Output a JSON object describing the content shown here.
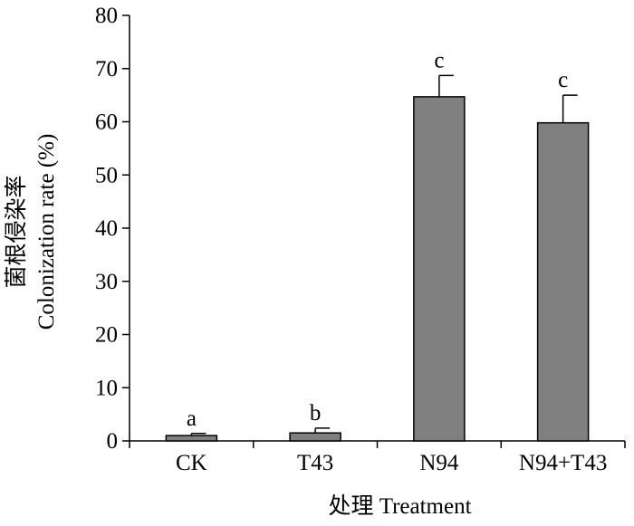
{
  "chart_data": {
    "type": "bar",
    "categories": [
      "CK",
      "T43",
      "N94",
      "N94+T43"
    ],
    "values": [
      1.0,
      1.5,
      64.7,
      59.8
    ],
    "errors": [
      0.4,
      0.9,
      4.0,
      5.2
    ],
    "significance": [
      "a",
      "b",
      "c",
      "c"
    ],
    "xlabel": "处理 Treatment",
    "ylabel_cn": "菌根侵染率",
    "ylabel_en": "Colonization rate (%)",
    "ylim": [
      0,
      80
    ],
    "yticks": [
      0,
      10,
      20,
      30,
      40,
      50,
      60,
      70,
      80
    ],
    "grid": false,
    "colors": {
      "bar_fill": "#808080",
      "bar_stroke": "#000000",
      "axis": "#000000"
    }
  }
}
